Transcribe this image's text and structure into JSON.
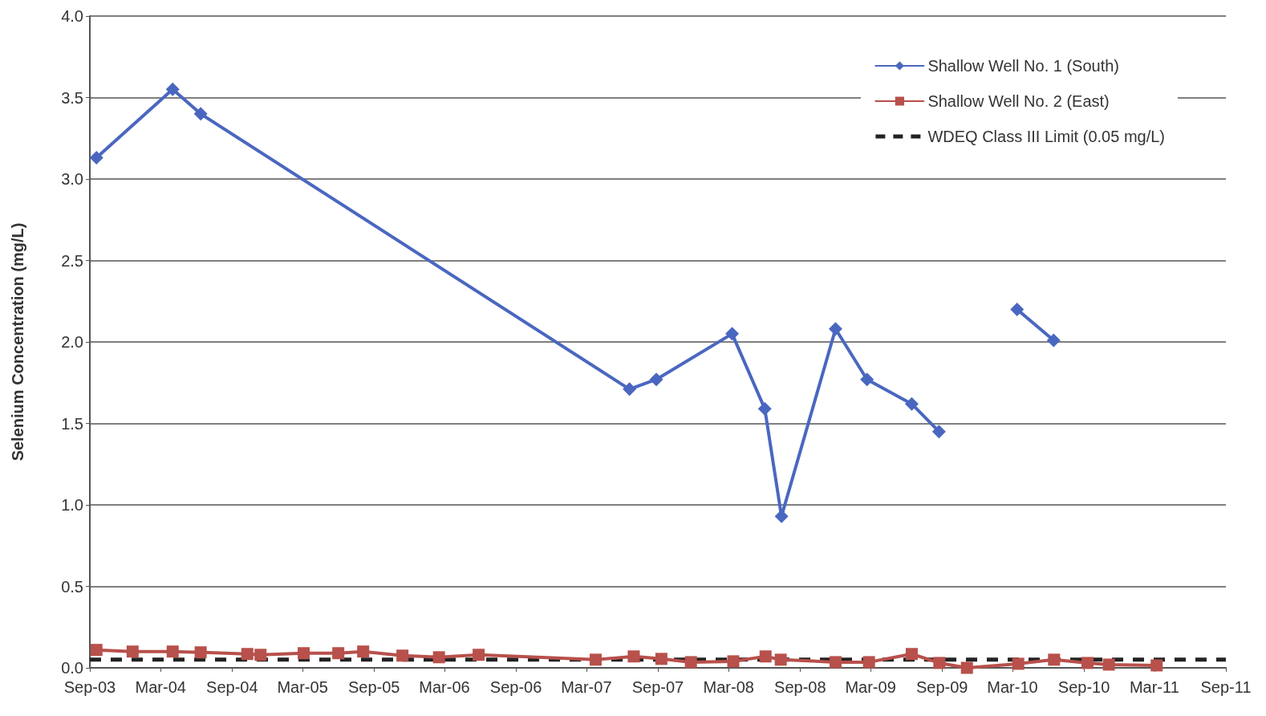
{
  "chart_data": {
    "type": "line",
    "ylabel": "Selenium Concentration (mg/L)",
    "series": [
      {
        "name": "Shallow Well No. 1 (South)",
        "color": "#4a67c0",
        "marker": "diamond",
        "x": [
          "2003-09-18",
          "2004-04-01",
          "2004-06-12",
          "2007-06-20",
          "2007-08-28",
          "2008-03-10",
          "2008-06-02",
          "2008-07-15",
          "2008-12-01",
          "2009-02-20",
          "2009-06-15",
          "2009-08-24",
          "2009-12-01",
          "2010-03-13",
          "2010-06-15"
        ],
        "values": [
          3.13,
          3.55,
          3.4,
          1.71,
          1.77,
          2.05,
          1.59,
          0.93,
          2.08,
          1.77,
          1.62,
          1.45,
          null,
          2.2,
          2.01
        ]
      },
      {
        "name": "Shallow Well No. 2 (East)",
        "color": "#b8504b",
        "marker": "square",
        "x": [
          "2003-09-18",
          "2003-12-20",
          "2004-04-01",
          "2004-06-12",
          "2004-10-10",
          "2004-11-13",
          "2005-03-04",
          "2005-06-01",
          "2005-08-04",
          "2005-11-13",
          "2006-02-15",
          "2006-05-28",
          "2007-03-25",
          "2007-07-01",
          "2007-09-10",
          "2007-11-25",
          "2008-03-13",
          "2008-06-04",
          "2008-07-13",
          "2008-12-01",
          "2009-02-25",
          "2009-06-15",
          "2009-08-25",
          "2009-11-04",
          "2010-03-16",
          "2010-06-16",
          "2010-09-10",
          "2010-11-04",
          "2011-03-07"
        ],
        "values": [
          0.11,
          0.1,
          0.1,
          0.095,
          0.085,
          0.08,
          0.09,
          0.09,
          0.1,
          0.075,
          0.065,
          0.08,
          0.05,
          0.07,
          0.055,
          0.035,
          0.04,
          0.07,
          0.05,
          0.035,
          0.035,
          0.085,
          0.03,
          0.0,
          0.025,
          0.05,
          0.03,
          0.02,
          0.015
        ]
      }
    ],
    "ref_lines": [
      {
        "axis": "y",
        "value": 0.05,
        "label": "WDEQ Class III Limit (0.05 mg/L)",
        "color": "#222222",
        "line_style": "dashed"
      }
    ],
    "xlim": [
      "2003-09-01",
      "2011-09-01"
    ],
    "xticks": [
      {
        "value": "2003-09-01",
        "label": "Sep-03"
      },
      {
        "value": "2004-03-01",
        "label": "Mar-04"
      },
      {
        "value": "2004-09-01",
        "label": "Sep-04"
      },
      {
        "value": "2005-03-01",
        "label": "Mar-05"
      },
      {
        "value": "2005-09-01",
        "label": "Sep-05"
      },
      {
        "value": "2006-03-01",
        "label": "Mar-06"
      },
      {
        "value": "2006-09-01",
        "label": "Sep-06"
      },
      {
        "value": "2007-03-01",
        "label": "Mar-07"
      },
      {
        "value": "2007-09-01",
        "label": "Sep-07"
      },
      {
        "value": "2008-03-01",
        "label": "Mar-08"
      },
      {
        "value": "2008-09-01",
        "label": "Sep-08"
      },
      {
        "value": "2009-03-01",
        "label": "Mar-09"
      },
      {
        "value": "2009-09-01",
        "label": "Sep-09"
      },
      {
        "value": "2010-03-01",
        "label": "Mar-10"
      },
      {
        "value": "2010-09-01",
        "label": "Sep-10"
      },
      {
        "value": "2011-03-01",
        "label": "Mar-11"
      },
      {
        "value": "2011-09-01",
        "label": "Sep-11"
      }
    ],
    "ylim": [
      0,
      4
    ],
    "yticks": [
      {
        "value": 0,
        "label": "0.0"
      },
      {
        "value": 0.5,
        "label": "0.5"
      },
      {
        "value": 1,
        "label": "1.0"
      },
      {
        "value": 1.5,
        "label": "1.5"
      },
      {
        "value": 2,
        "label": "2.0"
      },
      {
        "value": 2.5,
        "label": "2.5"
      },
      {
        "value": 3,
        "label": "3.0"
      },
      {
        "value": 3.5,
        "label": "3.5"
      },
      {
        "value": 4,
        "label": "4.0"
      }
    ],
    "grid": "y",
    "legend": "top right",
    "line_style": "solid"
  }
}
